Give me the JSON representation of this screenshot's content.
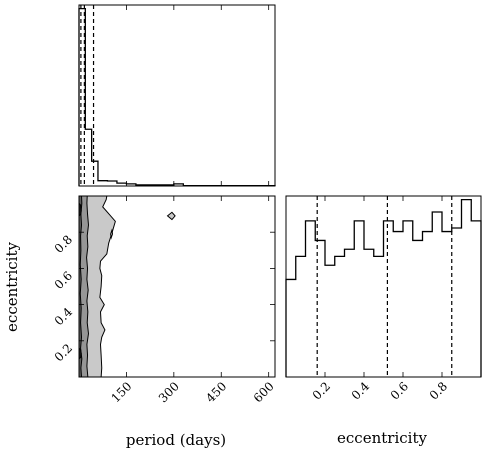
{
  "chart_data": {
    "type": "corner",
    "parameters": [
      "period",
      "eccentricity"
    ],
    "axes": {
      "period": {
        "label": "period (days)",
        "range": [
          0,
          620
        ],
        "ticks": [
          150,
          300,
          450,
          600
        ],
        "tick_labels": [
          "150",
          "300",
          "450",
          "600"
        ]
      },
      "eccentricity": {
        "label": "eccentricity",
        "range": [
          0,
          1
        ],
        "ticks": [
          0.2,
          0.4,
          0.6,
          0.8
        ],
        "tick_labels": [
          "0.2",
          "0.4",
          "0.6",
          "0.8"
        ]
      }
    },
    "hist_period": {
      "bin_edges": [
        0,
        10,
        20,
        30,
        40,
        50,
        60,
        90,
        120,
        150,
        180,
        210,
        240,
        270,
        300,
        330,
        360,
        390,
        420,
        450,
        480,
        510,
        540,
        570,
        600,
        620
      ],
      "heights": [
        1.0,
        1.0,
        0.32,
        0.32,
        0.14,
        0.14,
        0.03,
        0.028,
        0.016,
        0.012,
        0.006,
        0.006,
        0.006,
        0.006,
        0.012,
        0.002,
        0.002,
        0.002,
        0.002,
        0.002,
        0.002,
        0.002,
        0.002,
        0.002,
        0.002
      ],
      "quantiles": [
        6,
        17,
        46
      ]
    },
    "hist_eccentricity": {
      "bin_edges": [
        0.0,
        0.05,
        0.1,
        0.15,
        0.2,
        0.25,
        0.3,
        0.35,
        0.4,
        0.45,
        0.5,
        0.55,
        0.6,
        0.65,
        0.7,
        0.75,
        0.8,
        0.85,
        0.9,
        0.95,
        1.0
      ],
      "heights": [
        0.55,
        0.68,
        0.88,
        0.77,
        0.63,
        0.68,
        0.72,
        0.88,
        0.72,
        0.68,
        0.88,
        0.82,
        0.88,
        0.77,
        0.82,
        0.93,
        0.82,
        0.84,
        1.0,
        0.88
      ],
      "quantiles": [
        0.16,
        0.52,
        0.85
      ]
    },
    "contours": {
      "x_param": "period",
      "y_param": "eccentricity",
      "levels": [
        {
          "fill": "#c9c9c9",
          "points": [
            [
              0,
              0
            ],
            [
              70,
              0
            ],
            [
              72,
              0.05
            ],
            [
              70,
              0.12
            ],
            [
              68,
              0.18
            ],
            [
              72,
              0.22
            ],
            [
              82,
              0.26
            ],
            [
              70,
              0.3
            ],
            [
              68,
              0.36
            ],
            [
              80,
              0.4
            ],
            [
              66,
              0.44
            ],
            [
              70,
              0.5
            ],
            [
              72,
              0.56
            ],
            [
              66,
              0.6
            ],
            [
              68,
              0.64
            ],
            [
              88,
              0.68
            ],
            [
              94,
              0.74
            ],
            [
              105,
              0.8
            ],
            [
              115,
              0.86
            ],
            [
              95,
              0.9
            ],
            [
              75,
              0.94
            ],
            [
              86,
              0.98
            ],
            [
              88,
              1.0
            ],
            [
              0,
              1.0
            ]
          ]
        },
        {
          "fill": "#969696",
          "points": [
            [
              0,
              0
            ],
            [
              28,
              0
            ],
            [
              25,
              0.06
            ],
            [
              27,
              0.12
            ],
            [
              25,
              0.18
            ],
            [
              30,
              0.24
            ],
            [
              26,
              0.3
            ],
            [
              28,
              0.36
            ],
            [
              25,
              0.42
            ],
            [
              29,
              0.48
            ],
            [
              25,
              0.54
            ],
            [
              27,
              0.6
            ],
            [
              24,
              0.66
            ],
            [
              28,
              0.72
            ],
            [
              26,
              0.78
            ],
            [
              30,
              0.84
            ],
            [
              27,
              0.9
            ],
            [
              25,
              0.96
            ],
            [
              26,
              1.0
            ],
            [
              0,
              1.0
            ]
          ]
        },
        {
          "fill": "#5f5f5f",
          "points": [
            [
              0,
              0
            ],
            [
              8,
              0
            ],
            [
              6,
              0.05
            ],
            [
              9,
              0.1
            ],
            [
              5,
              0.16
            ],
            [
              8,
              0.22
            ],
            [
              5,
              0.3
            ],
            [
              7,
              0.38
            ],
            [
              4,
              0.46
            ],
            [
              7,
              0.54
            ],
            [
              4,
              0.62
            ],
            [
              6,
              0.7
            ],
            [
              5,
              0.78
            ],
            [
              8,
              0.84
            ],
            [
              6,
              0.9
            ],
            [
              9,
              0.96
            ],
            [
              8,
              1.0
            ],
            [
              0,
              1.0
            ]
          ]
        },
        {
          "fill": "#1c1c1c",
          "points": [
            [
              0,
              0.1
            ],
            [
              6,
              0.11
            ],
            [
              7,
              0.13
            ],
            [
              5,
              0.15
            ],
            [
              0,
              0.16
            ]
          ]
        },
        {
          "fill": "#1c1c1c",
          "points": [
            [
              0,
              0.89
            ],
            [
              6,
              0.9
            ],
            [
              7,
              0.92
            ],
            [
              5,
              0.95
            ],
            [
              0,
              0.96
            ]
          ]
        }
      ],
      "islands": [
        [
          [
            280,
            0.89
          ],
          [
            294,
            0.87
          ],
          [
            304,
            0.89
          ],
          [
            294,
            0.91
          ]
        ],
        [
          [
            102,
            0.77
          ],
          [
            106,
            0.79
          ],
          [
            104,
            0.81
          ],
          [
            100,
            0.79
          ]
        ]
      ]
    }
  }
}
